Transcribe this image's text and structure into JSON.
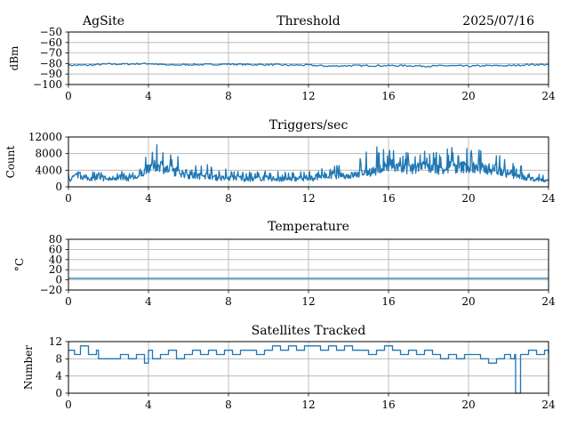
{
  "header": {
    "site": "AgSite",
    "date": "2025/07/16"
  },
  "colors": {
    "series": "#1f77b4"
  },
  "chart_data": [
    {
      "type": "line",
      "title": "Threshold",
      "ylabel": "dBm",
      "xlabel": "",
      "xlim": [
        0,
        24
      ],
      "ylim": [
        -100,
        -50
      ],
      "xticks": [
        0,
        4,
        8,
        12,
        16,
        20,
        24
      ],
      "yticks": [
        -100,
        -90,
        -80,
        -70,
        -60,
        -50
      ],
      "ytick_labels": [
        "−100",
        "−90",
        "−80",
        "−70",
        "−60",
        "−50"
      ],
      "grid": true,
      "series": [
        {
          "x": [
            0,
            1,
            2,
            3,
            4,
            5,
            6,
            7,
            8,
            9,
            10,
            11,
            12,
            13,
            14,
            15,
            16,
            17,
            18,
            19,
            20,
            21,
            22,
            23,
            24
          ],
          "values": [
            -81.5,
            -81.5,
            -80.5,
            -80.5,
            -80,
            -81.5,
            -81,
            -81,
            -80.5,
            -81,
            -81,
            -81.5,
            -81.5,
            -82.5,
            -82,
            -82,
            -82,
            -82,
            -82.5,
            -82,
            -82.5,
            -82,
            -82,
            -81,
            -81
          ]
        }
      ]
    },
    {
      "type": "line",
      "title": "Triggers/sec",
      "ylabel": "Count",
      "xlabel": "",
      "xlim": [
        0,
        24
      ],
      "ylim": [
        0,
        12000
      ],
      "xticks": [
        0,
        4,
        8,
        12,
        16,
        20,
        24
      ],
      "yticks": [
        0,
        4000,
        8000,
        12000
      ],
      "ytick_labels": [
        "0",
        "4000",
        "8000",
        "12000"
      ],
      "grid": true,
      "series": [
        {
          "x": [
            0,
            0.5,
            1,
            1.5,
            2,
            2.5,
            3,
            3.5,
            4,
            4.5,
            5,
            5.5,
            6,
            6.5,
            7,
            7.5,
            8,
            8.5,
            9,
            9.5,
            10,
            10.5,
            11,
            11.5,
            12,
            12.5,
            13,
            13.5,
            14,
            14.5,
            15,
            15.5,
            16,
            16.5,
            17,
            17.5,
            18,
            18.5,
            19,
            19.5,
            20,
            20.5,
            21,
            21.5,
            22,
            22.5,
            23,
            23.5,
            24
          ],
          "values": [
            2000,
            3500,
            2500,
            2800,
            2200,
            3000,
            2500,
            3000,
            5500,
            6500,
            5000,
            4500,
            3500,
            3200,
            3500,
            2600,
            2500,
            2800,
            2200,
            2600,
            2500,
            2400,
            2200,
            2500,
            2400,
            3000,
            3200,
            3500,
            3300,
            3800,
            4500,
            5000,
            6000,
            5800,
            5200,
            5500,
            5800,
            5400,
            6000,
            5800,
            6200,
            5500,
            5400,
            5000,
            3800,
            3200,
            2500,
            2200,
            2000
          ],
          "peaks": [
            4000,
            4000,
            4200,
            3600,
            3400,
            3800,
            3600,
            4000,
            8500,
            10500,
            8000,
            7500,
            6500,
            5500,
            5500,
            4000,
            4500,
            4000,
            3600,
            4000,
            4000,
            3800,
            3500,
            3800,
            3800,
            4500,
            4600,
            5500,
            5500,
            6500,
            9000,
            10000,
            9500,
            9000,
            8500,
            9000,
            9500,
            8500,
            10000,
            9000,
            10000,
            9000,
            9500,
            8500,
            6000,
            5500,
            4000,
            3500,
            3200
          ]
        }
      ]
    },
    {
      "type": "line",
      "title": "Temperature",
      "ylabel": "°C",
      "xlabel": "",
      "xlim": [
        0,
        24
      ],
      "ylim": [
        -20,
        80
      ],
      "xticks": [
        0,
        4,
        8,
        12,
        16,
        20,
        24
      ],
      "yticks": [
        -20,
        0,
        20,
        40,
        60,
        80
      ],
      "ytick_labels": [
        "−20",
        "0",
        "20",
        "40",
        "60",
        "80"
      ],
      "grid": true,
      "series": [
        {
          "x": [
            0,
            24
          ],
          "values": [
            3,
            3
          ]
        }
      ]
    },
    {
      "type": "line",
      "title": "Satellites Tracked",
      "ylabel": "Number",
      "xlabel": "",
      "xlim": [
        0,
        24
      ],
      "ylim": [
        0,
        12
      ],
      "xticks": [
        0,
        4,
        8,
        12,
        16,
        20,
        24
      ],
      "yticks": [
        0,
        4,
        8,
        12
      ],
      "ytick_labels": [
        "0",
        "4",
        "8",
        "12"
      ],
      "grid": true,
      "series": [
        {
          "x": [
            0,
            0.3,
            0.6,
            1,
            1.4,
            1.5,
            2.3,
            2.6,
            3,
            3.4,
            3.8,
            4,
            4.2,
            4.6,
            5,
            5.4,
            5.8,
            6.2,
            6.6,
            7,
            7.4,
            7.8,
            8.2,
            8.6,
            9,
            9.4,
            9.8,
            10.2,
            10.6,
            11,
            11.4,
            11.8,
            12.2,
            12.6,
            13,
            13.4,
            13.8,
            14.2,
            14.6,
            15,
            15.4,
            15.8,
            16.2,
            16.6,
            17,
            17.4,
            17.8,
            18.2,
            18.6,
            19,
            19.4,
            19.8,
            20.2,
            20.6,
            21,
            21.4,
            21.8,
            22.1,
            22.3,
            22.35,
            22.6,
            23,
            23.4,
            23.8,
            24
          ],
          "values": [
            10,
            9,
            11,
            9,
            10,
            8,
            8,
            9,
            8,
            9,
            7,
            10,
            8,
            9,
            10,
            8,
            9,
            10,
            9,
            10,
            9,
            10,
            9,
            10,
            10,
            9,
            10,
            11,
            10,
            11,
            10,
            11,
            11,
            10,
            11,
            10,
            11,
            10,
            10,
            9,
            10,
            11,
            10,
            9,
            10,
            9,
            10,
            9,
            8,
            9,
            8,
            9,
            9,
            8,
            7,
            8,
            9,
            8,
            9,
            0,
            9,
            10,
            9,
            10,
            9
          ]
        }
      ]
    }
  ]
}
